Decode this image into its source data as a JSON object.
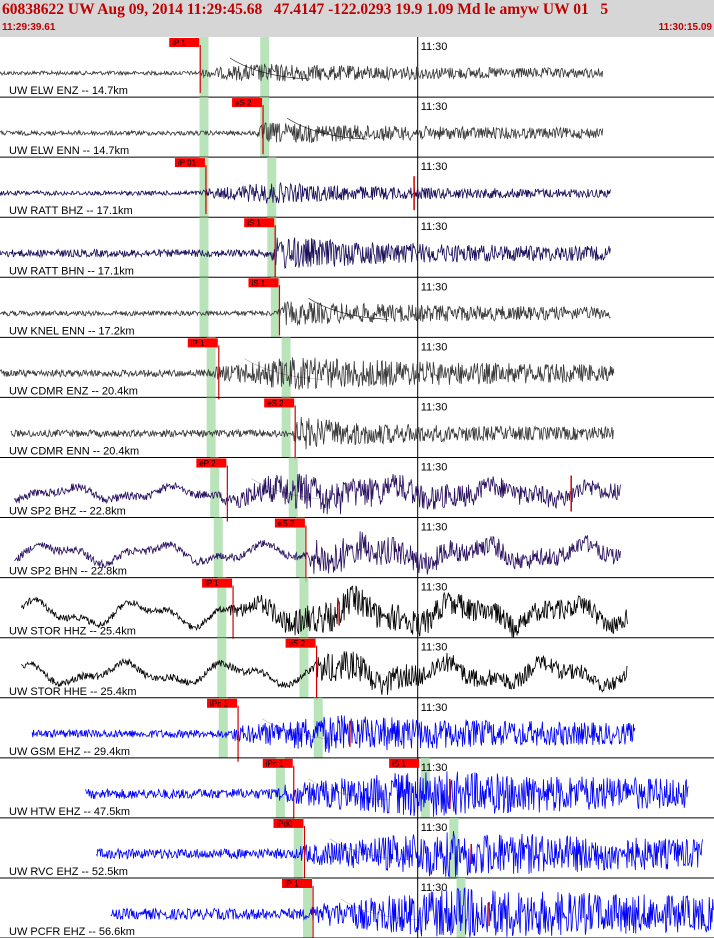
{
  "header": {
    "title": "60838622 UW Aug 09, 2014 11:29:45.68   47.4147 -122.0293 19.9 1.09 Md le amyw UW 01   5",
    "start_time": "11:29:39.61",
    "end_time": "11:30:15.09"
  },
  "time_mark_label": "11:30",
  "traces": [
    {
      "label": "UW ELW ENZ -- 14.7km",
      "color": "#3a3a3a",
      "start": 0.0,
      "end": 0.845,
      "amp": 8,
      "onset": 0.28,
      "peak": 0.36,
      "decay": 0.85,
      "longper": 0,
      "hash": 0.9,
      "green": [
        0.285,
        0.37
      ],
      "picks": [
        {
          "x": 0.237,
          "text": "iP 1",
          "line": true
        }
      ],
      "spike": null
    },
    {
      "label": "UW ELW ENN -- 14.7km",
      "color": "#3a3a3a",
      "start": 0.0,
      "end": 0.845,
      "amp": 9,
      "onset": 0.36,
      "peak": 0.37,
      "decay": 0.75,
      "longper": 0,
      "hash": 0.9,
      "green": [
        0.285,
        0.37
      ],
      "picks": [
        {
          "x": 0.325,
          "text": "eS 2",
          "line": true
        }
      ],
      "spike": null
    },
    {
      "label": "UW RATT BHZ -- 17.1km",
      "color": "#1b0e5c",
      "start": 0.0,
      "end": 0.855,
      "amp": 9,
      "onset": 0.285,
      "peak": 0.38,
      "decay": 0.45,
      "longper": 0,
      "hash": 0.05,
      "green": [
        0.285,
        0.38
      ],
      "picks": [
        {
          "x": 0.245,
          "text": "iP 01",
          "line": true
        }
      ],
      "spike": {
        "x": 0.58,
        "h": 34
      }
    },
    {
      "label": "UW RATT BHN -- 17.1km",
      "color": "#1b0e5c",
      "start": 0.0,
      "end": 0.855,
      "amp": 15,
      "onset": 0.38,
      "peak": 0.39,
      "decay": 0.45,
      "longper": 0,
      "hash": 0.05,
      "green": [
        0.285,
        0.38
      ],
      "picks": [
        {
          "x": 0.342,
          "text": "iS 1",
          "line": true
        }
      ],
      "spike": null
    },
    {
      "label": "UW KNEL ENN -- 17.2km",
      "color": "#3a3a3a",
      "start": 0.0,
      "end": 0.855,
      "amp": 10,
      "onset": 0.39,
      "peak": 0.4,
      "decay": 0.9,
      "longper": 0,
      "hash": 0.9,
      "green": [
        0.285,
        0.385
      ],
      "picks": [
        {
          "x": 0.348,
          "text": "iS 1",
          "line": true
        }
      ],
      "spike": null
    },
    {
      "label": "UW CDMR ENZ -- 20.4km",
      "color": "#3a3a3a",
      "start": 0.0,
      "end": 0.86,
      "amp": 14,
      "onset": 0.3,
      "peak": 0.41,
      "decay": 0.9,
      "longper": 0,
      "hash": 0.3,
      "green": [
        0.295,
        0.4
      ],
      "picks": [
        {
          "x": 0.263,
          "text": "iP 1",
          "line": true
        }
      ],
      "spike": null
    },
    {
      "label": "UW CDMR ENN -- 20.4km",
      "color": "#3a3a3a",
      "start": 0.015,
      "end": 0.86,
      "amp": 14,
      "onset": 0.41,
      "peak": 0.42,
      "decay": 0.35,
      "longper": 0,
      "hash": 0.1,
      "green": [
        0.295,
        0.4
      ],
      "picks": [
        {
          "x": 0.37,
          "text": "eS 2",
          "line": true
        }
      ],
      "spike": null
    },
    {
      "label": "UW SP2 BHZ -- 22.8km",
      "color": "#2a1060",
      "start": 0.02,
      "end": 0.87,
      "amp": 16,
      "onset": 0.31,
      "peak": 0.43,
      "decay": 0.6,
      "longper": 5,
      "hash": 0.3,
      "green": [
        0.3,
        0.41
      ],
      "picks": [
        {
          "x": 0.275,
          "text": "eP 2",
          "line": true
        }
      ],
      "spike": {
        "x": 0.8,
        "h": 36
      }
    },
    {
      "label": "UW SP2 BHN -- 22.8km",
      "color": "#2a1060",
      "start": 0.02,
      "end": 0.87,
      "amp": 16,
      "onset": 0.43,
      "peak": 0.44,
      "decay": 0.5,
      "longper": 7,
      "hash": 0.1,
      "green": [
        0.305,
        0.42
      ],
      "picks": [
        {
          "x": 0.385,
          "text": "eS 2",
          "line": true
        }
      ],
      "spike": null
    },
    {
      "label": "UW STOR HHZ -- 25.4km",
      "color": "#000000",
      "start": 0.03,
      "end": 0.88,
      "amp": 13,
      "onset": 0.32,
      "peak": 0.45,
      "decay": 1.2,
      "longper": 9,
      "hash": 0.1,
      "green": [
        0.31,
        0.425
      ],
      "picks": [
        {
          "x": 0.283,
          "text": "iP 1",
          "line": true
        }
      ],
      "spike": {
        "x": 0.475,
        "h": 24
      }
    },
    {
      "label": "UW STOR HHE -- 25.4km",
      "color": "#000000",
      "start": 0.03,
      "end": 0.88,
      "amp": 14,
      "onset": 0.44,
      "peak": 0.45,
      "decay": 0.5,
      "longper": 8,
      "hash": 0.1,
      "green": [
        0.31,
        0.425
      ],
      "picks": [
        {
          "x": 0.4,
          "text": "eS 2",
          "line": true
        }
      ],
      "spike": null
    },
    {
      "label": "UW GSM EHZ -- 29.4km",
      "color": "#0000ff",
      "start": 0.045,
      "end": 0.89,
      "amp": 16,
      "onset": 0.325,
      "peak": 0.46,
      "decay": 1.0,
      "longper": 0,
      "hash": 0.3,
      "green": [
        0.312,
        0.445
      ],
      "picks": [
        {
          "x": 0.29,
          "text": "iPc 1",
          "line": true
        }
      ],
      "spike": {
        "x": 0.49,
        "h": 26
      }
    },
    {
      "label": "UW HTW EHZ -- 47.5km",
      "color": "#0000ff",
      "start": 0.12,
      "end": 0.965,
      "amp": 20,
      "onset": 0.39,
      "peak": 0.59,
      "decay": 1.2,
      "longper": 0,
      "hash": 0.25,
      "green": [
        0.392,
        0.595
      ],
      "picks": [
        {
          "x": 0.368,
          "text": "iPc 1",
          "line": true
        },
        {
          "x": 0.545,
          "text": "iS 1",
          "line": false
        }
      ],
      "spike": {
        "x": 0.63,
        "h": 30
      }
    },
    {
      "label": "UW RVC EHZ -- 52.5km",
      "color": "#0000ff",
      "start": 0.135,
      "end": 0.985,
      "amp": 20,
      "onset": 0.42,
      "peak": 0.62,
      "decay": 1.1,
      "longper": 0,
      "hash": 0.3,
      "green": [
        0.417,
        0.635
      ],
      "picks": [
        {
          "x": 0.383,
          "text": "iPd0",
          "line": true
        }
      ],
      "spike": {
        "x": 0.66,
        "h": 20
      }
    },
    {
      "label": "UW PCFR EHZ -- 56.6km",
      "color": "#0000ff",
      "start": 0.155,
      "end": 1.0,
      "amp": 22,
      "onset": 0.435,
      "peak": 0.64,
      "decay": 1.4,
      "longper": 0,
      "hash": 0.3,
      "green": [
        0.43,
        0.645
      ],
      "picks": [
        {
          "x": 0.395,
          "text": "iP 1",
          "line": true
        }
      ],
      "spike": {
        "x": 0.685,
        "h": 24
      }
    }
  ]
}
